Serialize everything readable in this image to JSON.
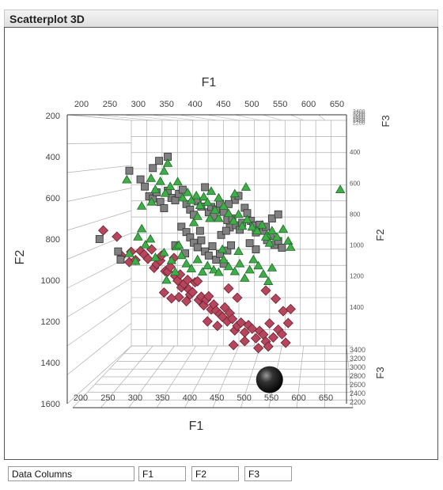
{
  "panel": {
    "title": "Scatterplot 3D"
  },
  "controls": {
    "data_columns_label": "Data Columns",
    "x_column": "F1",
    "y_column": "F2",
    "z_column": "F3"
  },
  "colors": {
    "group_diamond": "#b5465c",
    "group_square": "#808080",
    "group_triangle": "#3fae49",
    "sphere": "#1a1a1a",
    "grid": "#b0b0b0",
    "axis": "#333333"
  },
  "chart_data": {
    "type": "scatter",
    "view": "3d",
    "axes": {
      "x": {
        "label": "F1",
        "range": [
          200,
          650
        ],
        "ticks": [
          200,
          250,
          300,
          350,
          400,
          450,
          500,
          550,
          600,
          650
        ]
      },
      "y": {
        "label": "F2",
        "range": [
          200,
          1600
        ],
        "ticks": [
          200,
          400,
          600,
          800,
          1000,
          1200,
          1400,
          1600
        ],
        "reversed": true
      },
      "z": {
        "label": "F3",
        "range": [
          2200,
          3400
        ],
        "ticks": [
          2200,
          2400,
          2600,
          2800,
          3000,
          3200,
          3400
        ]
      }
    },
    "grid": true,
    "legend": "none",
    "series": [
      {
        "marker": "diamond",
        "color": "#b5465c",
        "points": [
          [
            258,
            758
          ],
          [
            280,
            788
          ],
          [
            288,
            882
          ],
          [
            300,
            912
          ],
          [
            303,
            862
          ],
          [
            310,
            902
          ],
          [
            318,
            858
          ],
          [
            324,
            875
          ],
          [
            330,
            896
          ],
          [
            336,
            850
          ],
          [
            340,
            940
          ],
          [
            344,
            922
          ],
          [
            350,
            905
          ],
          [
            352,
            880
          ],
          [
            358,
            956
          ],
          [
            362,
            958
          ],
          [
            366,
            935
          ],
          [
            372,
            892
          ],
          [
            374,
            980
          ],
          [
            378,
            1002
          ],
          [
            382,
            972
          ],
          [
            384,
            1035
          ],
          [
            388,
            1018
          ],
          [
            394,
            998
          ],
          [
            396,
            1045
          ],
          [
            398,
            1070
          ],
          [
            402,
            1058
          ],
          [
            406,
            1010
          ],
          [
            410,
            1005
          ],
          [
            412,
            1096
          ],
          [
            416,
            1080
          ],
          [
            420,
            1122
          ],
          [
            424,
            1094
          ],
          [
            428,
            1078
          ],
          [
            432,
            1142
          ],
          [
            436,
            1118
          ],
          [
            440,
            1148
          ],
          [
            446,
            1165
          ],
          [
            450,
            1178
          ],
          [
            454,
            1132
          ],
          [
            458,
            1200
          ],
          [
            462,
            1160
          ],
          [
            466,
            1188
          ],
          [
            470,
            1244
          ],
          [
            474,
            1222
          ],
          [
            480,
            1206
          ],
          [
            486,
            1254
          ],
          [
            492,
            1218
          ],
          [
            498,
            1236
          ],
          [
            504,
            1282
          ],
          [
            510,
            1246
          ],
          [
            516,
            1264
          ],
          [
            520,
            1298
          ],
          [
            526,
            1210
          ],
          [
            532,
            1278
          ],
          [
            540,
            1240
          ],
          [
            546,
            1262
          ],
          [
            552,
            1304
          ],
          [
            556,
            1208
          ],
          [
            560,
            1140
          ],
          [
            380,
            1082
          ],
          [
            392,
            1102
          ],
          [
            426,
            1200
          ],
          [
            442,
            1222
          ],
          [
            468,
            1315
          ],
          [
            486,
            1296
          ],
          [
            508,
            1330
          ],
          [
            524,
            1322
          ],
          [
            356,
            1060
          ],
          [
            368,
            1088
          ],
          [
            520,
            1050
          ],
          [
            536,
            1090
          ],
          [
            548,
            1150
          ],
          [
            474,
            1085
          ],
          [
            460,
            1040
          ]
        ]
      },
      {
        "marker": "square",
        "color": "#808080",
        "points": [
          [
            362,
            400
          ],
          [
            348,
            420
          ],
          [
            338,
            455
          ],
          [
            300,
            468
          ],
          [
            318,
            510
          ],
          [
            325,
            545
          ],
          [
            332,
            592
          ],
          [
            338,
            603
          ],
          [
            344,
            573
          ],
          [
            350,
            620
          ],
          [
            356,
            650
          ],
          [
            362,
            565
          ],
          [
            368,
            600
          ],
          [
            374,
            612
          ],
          [
            380,
            580
          ],
          [
            386,
            560
          ],
          [
            392,
            630
          ],
          [
            398,
            657
          ],
          [
            404,
            682
          ],
          [
            410,
            617
          ],
          [
            416,
            642
          ],
          [
            422,
            548
          ],
          [
            428,
            670
          ],
          [
            432,
            644
          ],
          [
            436,
            690
          ],
          [
            440,
            656
          ],
          [
            446,
            628
          ],
          [
            452,
            668
          ],
          [
            458,
            708
          ],
          [
            462,
            744
          ],
          [
            466,
            700
          ],
          [
            472,
            733
          ],
          [
            478,
            755
          ],
          [
            482,
            721
          ],
          [
            486,
            648
          ],
          [
            490,
            674
          ],
          [
            496,
            712
          ],
          [
            500,
            734
          ],
          [
            504,
            768
          ],
          [
            510,
            730
          ],
          [
            516,
            760
          ],
          [
            522,
            805
          ],
          [
            528,
            785
          ],
          [
            534,
            828
          ],
          [
            540,
            810
          ],
          [
            546,
            842
          ],
          [
            384,
            740
          ],
          [
            392,
            766
          ],
          [
            398,
            792
          ],
          [
            404,
            818
          ],
          [
            410,
            840
          ],
          [
            416,
            806
          ],
          [
            422,
            860
          ],
          [
            428,
            880
          ],
          [
            434,
            835
          ],
          [
            440,
            900
          ],
          [
            446,
            872
          ],
          [
            452,
            920
          ],
          [
            458,
            856
          ],
          [
            464,
            830
          ],
          [
            470,
            610
          ],
          [
            476,
            590
          ],
          [
            282,
            860
          ],
          [
            286,
            900
          ],
          [
            252,
            800
          ],
          [
            504,
            850
          ],
          [
            494,
            820
          ],
          [
            520,
            740
          ],
          [
            530,
            700
          ],
          [
            540,
            680
          ],
          [
            448,
            780
          ],
          [
            456,
            760
          ],
          [
            374,
            830
          ],
          [
            390,
            870
          ],
          [
            414,
            760
          ],
          [
            460,
            630
          ]
        ]
      },
      {
        "marker": "triangle",
        "color": "#3fae49",
        "points": [
          [
            296,
            512
          ],
          [
            335,
            505
          ],
          [
            362,
            432
          ],
          [
            356,
            470
          ],
          [
            350,
            520
          ],
          [
            342,
            560
          ],
          [
            358,
            578
          ],
          [
            366,
            545
          ],
          [
            378,
            522
          ],
          [
            386,
            600
          ],
          [
            394,
            574
          ],
          [
            400,
            612
          ],
          [
            408,
            589
          ],
          [
            414,
            637
          ],
          [
            420,
            595
          ],
          [
            426,
            622
          ],
          [
            432,
            568
          ],
          [
            438,
            660
          ],
          [
            444,
            700
          ],
          [
            452,
            640
          ],
          [
            460,
            676
          ],
          [
            468,
            712
          ],
          [
            476,
            680
          ],
          [
            482,
            738
          ],
          [
            490,
            706
          ],
          [
            498,
            742
          ],
          [
            506,
            760
          ],
          [
            514,
            732
          ],
          [
            522,
            780
          ],
          [
            530,
            760
          ],
          [
            538,
            790
          ],
          [
            548,
            752
          ],
          [
            556,
            810
          ],
          [
            320,
            750
          ],
          [
            314,
            790
          ],
          [
            326,
            828
          ],
          [
            334,
            800
          ],
          [
            300,
            870
          ],
          [
            310,
            908
          ],
          [
            342,
            890
          ],
          [
            356,
            866
          ],
          [
            368,
            904
          ],
          [
            376,
            838
          ],
          [
            384,
            880
          ],
          [
            392,
            920
          ],
          [
            400,
            944
          ],
          [
            410,
            900
          ],
          [
            418,
            960
          ],
          [
            426,
            930
          ],
          [
            436,
            950
          ],
          [
            444,
            962
          ],
          [
            452,
            900
          ],
          [
            460,
            934
          ],
          [
            470,
            958
          ],
          [
            478,
            920
          ],
          [
            486,
            990
          ],
          [
            494,
            950
          ],
          [
            500,
            900
          ],
          [
            508,
            930
          ],
          [
            516,
            970
          ],
          [
            524,
            1006
          ],
          [
            530,
            940
          ],
          [
            320,
            640
          ],
          [
            336,
            620
          ],
          [
            444,
            600
          ],
          [
            470,
            580
          ],
          [
            488,
            548
          ],
          [
            520,
            790
          ],
          [
            526,
            820
          ],
          [
            560,
            840
          ],
          [
            450,
            850
          ],
          [
            476,
            860
          ],
          [
            380,
            830
          ],
          [
            404,
            720
          ],
          [
            410,
            690
          ],
          [
            430,
            700
          ],
          [
            640,
            560
          ],
          [
            360,
            1000
          ],
          [
            374,
            960
          ]
        ]
      },
      {
        "marker": "sphere",
        "color": "#1a1a1a",
        "points": [
          [
            526,
            1483
          ]
        ]
      }
    ]
  }
}
